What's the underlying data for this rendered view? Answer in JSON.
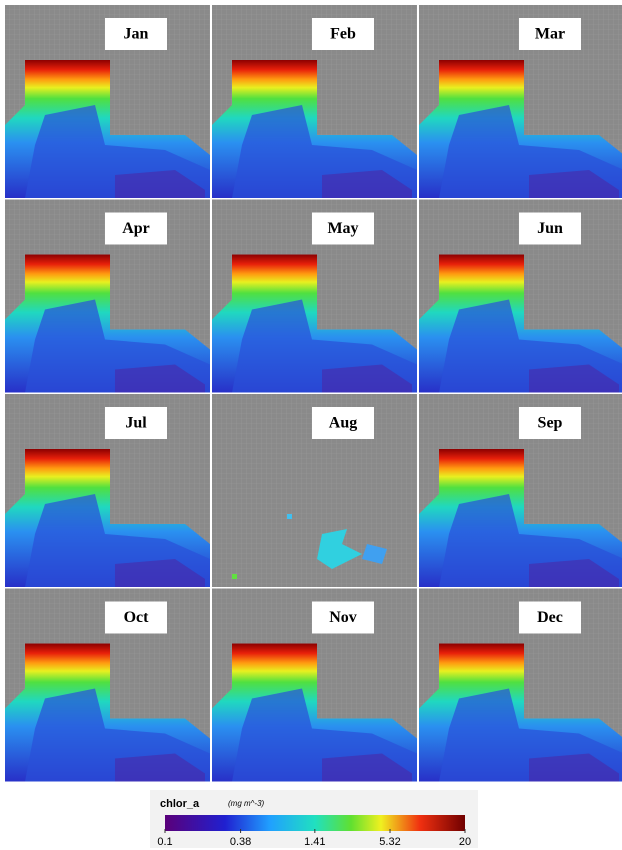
{
  "panels": [
    {
      "label": "Jan"
    },
    {
      "label": "Feb"
    },
    {
      "label": "Mar"
    },
    {
      "label": "Apr"
    },
    {
      "label": "May"
    },
    {
      "label": "Jun"
    },
    {
      "label": "Jul"
    },
    {
      "label": "Aug"
    },
    {
      "label": "Sep"
    },
    {
      "label": "Oct"
    },
    {
      "label": "Nov"
    },
    {
      "label": "Dec"
    }
  ],
  "colorbar": {
    "title": "chlor_a",
    "unit": "(mg m^-3)",
    "scale": "log",
    "lim": [
      0.1,
      20
    ],
    "ticks": [
      0.1,
      0.38,
      1.41,
      5.32,
      20
    ]
  }
}
